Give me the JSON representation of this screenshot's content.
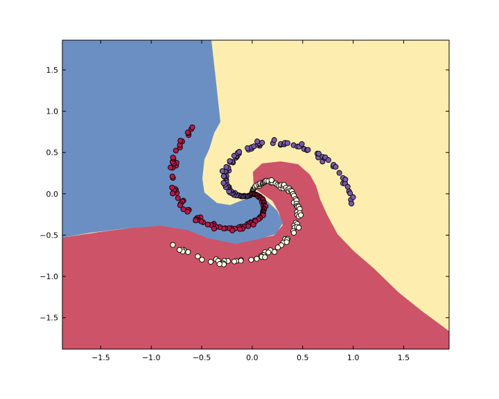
{
  "chart_data": {
    "type": "scatter",
    "title": "",
    "xlabel": "",
    "ylabel": "",
    "xlim": [
      -1.88,
      1.95
    ],
    "ylim": [
      -1.88,
      1.86
    ],
    "x_ticks": [
      -1.5,
      -1.0,
      -0.5,
      0.0,
      0.5,
      1.0,
      1.5
    ],
    "x_tick_labels": [
      "−1.5",
      "−1.0",
      "−0.5",
      "0.0",
      "0.5",
      "1.0",
      "1.5"
    ],
    "y_ticks": [
      1.5,
      1.0,
      0.5,
      0.0,
      -0.5,
      -1.0,
      -1.5
    ],
    "y_tick_labels": [
      "1.5",
      "1.0",
      "0.5",
      "0.0",
      "−0.5",
      "−1.0",
      "−1.5"
    ],
    "grid": false,
    "decision_regions": [
      {
        "class": 0,
        "color": "#fdeeb0"
      },
      {
        "class": 1,
        "color": "#6b8fc3"
      },
      {
        "class": 2,
        "color": "#cd5369"
      }
    ],
    "series": [
      {
        "class": 0,
        "color": "#ffffe5",
        "points": 100
      },
      {
        "class": 1,
        "color": "#7b5aa6",
        "points": 100
      },
      {
        "class": 2,
        "color": "#b8184a",
        "points": 100
      }
    ],
    "point_outline_color": "#000000"
  }
}
